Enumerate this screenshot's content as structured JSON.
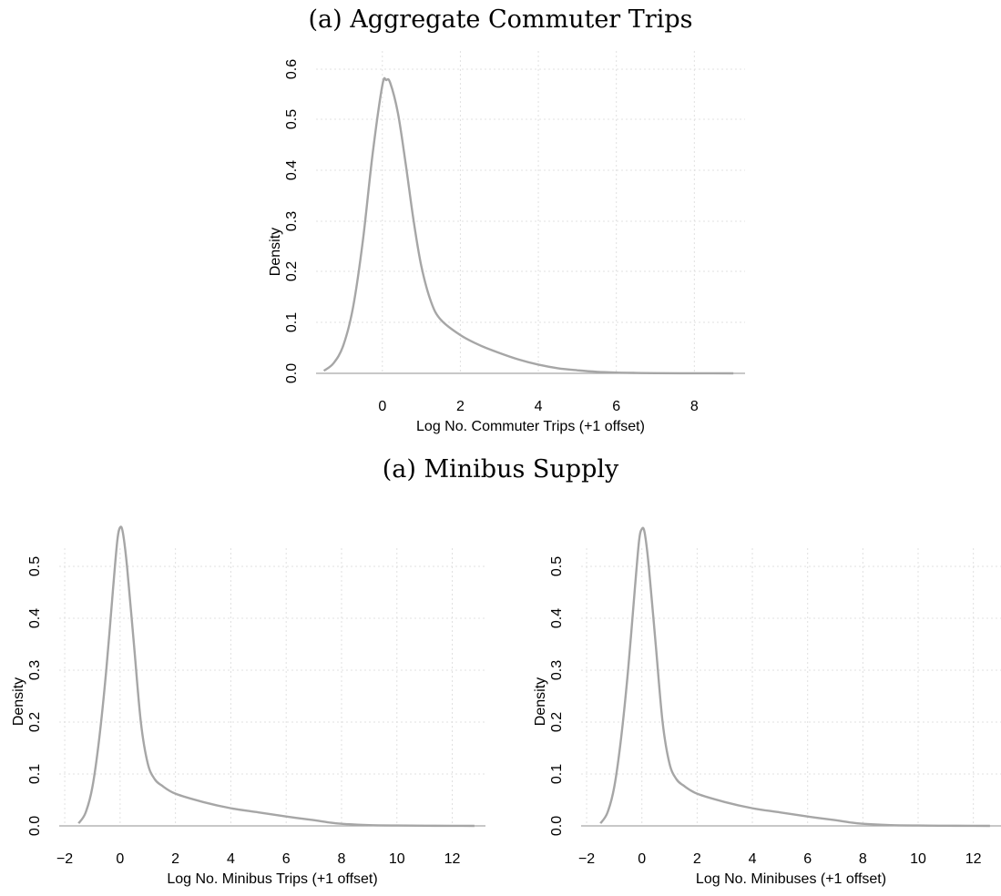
{
  "titles": {
    "top": "(a) Aggregate Commuter Trips",
    "bottom": "(a) Minibus Supply"
  },
  "colors": {
    "curve": "#a6a6a6",
    "grid": "#e0e0e0",
    "baseline": "#a6a6a6"
  },
  "chart_data": [
    {
      "type": "line",
      "title": "",
      "xlabel": "Log No. Commuter Trips (+1 offset)",
      "ylabel": "Density",
      "xlim": [
        -1.7,
        9.3
      ],
      "ylim": [
        0,
        0.6
      ],
      "xticks": [
        0,
        2,
        4,
        6,
        8
      ],
      "yticks": [
        0.0,
        0.1,
        0.2,
        0.3,
        0.4,
        0.5,
        0.6
      ],
      "ytick_labels": [
        "0.0",
        "0.1",
        "0.2",
        "0.3",
        "0.4",
        "0.5",
        "0.6"
      ],
      "grid": true,
      "x": [
        -1.5,
        -1.25,
        -1.0,
        -0.75,
        -0.5,
        -0.25,
        0.0,
        0.1,
        0.2,
        0.4,
        0.6,
        0.8,
        1.0,
        1.25,
        1.5,
        2.0,
        2.5,
        3.0,
        3.5,
        4.0,
        4.5,
        5.0,
        5.5,
        6.0,
        6.5,
        7.0,
        8.0,
        9.0
      ],
      "y": [
        0.005,
        0.02,
        0.055,
        0.13,
        0.26,
        0.43,
        0.565,
        0.575,
        0.57,
        0.51,
        0.41,
        0.3,
        0.21,
        0.14,
        0.105,
        0.075,
        0.055,
        0.04,
        0.027,
        0.017,
        0.01,
        0.006,
        0.003,
        0.0015,
        0.0008,
        0.0004,
        0.0001,
        0.0
      ]
    },
    {
      "type": "line",
      "title": "",
      "xlabel": "Log No. Minibus Trips (+1 offset)",
      "ylabel": "Density",
      "xlim": [
        -2.2,
        13.2
      ],
      "ylim": [
        0,
        0.6
      ],
      "xticks": [
        -2,
        0,
        2,
        4,
        6,
        8,
        10,
        12
      ],
      "xtick_labels": [
        "−2",
        "0",
        "2",
        "4",
        "6",
        "8",
        "10",
        "12"
      ],
      "yticks": [
        0.0,
        0.1,
        0.2,
        0.3,
        0.4,
        0.5
      ],
      "ytick_labels": [
        "0.0",
        "0.1",
        "0.2",
        "0.3",
        "0.4",
        "0.5"
      ],
      "grid": true,
      "x": [
        -1.5,
        -1.25,
        -1.0,
        -0.75,
        -0.5,
        -0.25,
        -0.1,
        0.0,
        0.1,
        0.25,
        0.5,
        0.75,
        1.0,
        1.25,
        1.5,
        2.0,
        3.0,
        4.0,
        5.0,
        6.0,
        7.0,
        7.5,
        8.0,
        9.0,
        10.0,
        11.0,
        12.0,
        12.8
      ],
      "y": [
        0.005,
        0.025,
        0.075,
        0.17,
        0.3,
        0.46,
        0.55,
        0.575,
        0.565,
        0.5,
        0.35,
        0.2,
        0.12,
        0.09,
        0.078,
        0.062,
        0.046,
        0.034,
        0.026,
        0.018,
        0.011,
        0.007,
        0.004,
        0.0015,
        0.0007,
        0.0003,
        0.0001,
        0.0
      ]
    },
    {
      "type": "line",
      "title": "",
      "xlabel": "Log No. Minibuses (+1 offset)",
      "ylabel": "Density",
      "xlim": [
        -2.2,
        13.0
      ],
      "ylim": [
        0,
        0.6
      ],
      "xticks": [
        -2,
        0,
        2,
        4,
        6,
        8,
        10,
        12
      ],
      "xtick_labels": [
        "−2",
        "0",
        "2",
        "4",
        "6",
        "8",
        "10",
        "12"
      ],
      "yticks": [
        0.0,
        0.1,
        0.2,
        0.3,
        0.4,
        0.5
      ],
      "ytick_labels": [
        "0.0",
        "0.1",
        "0.2",
        "0.3",
        "0.4",
        "0.5"
      ],
      "grid": true,
      "x": [
        -1.5,
        -1.25,
        -1.0,
        -0.75,
        -0.5,
        -0.25,
        -0.1,
        0.0,
        0.1,
        0.25,
        0.5,
        0.75,
        1.0,
        1.25,
        1.5,
        2.0,
        3.0,
        4.0,
        5.0,
        6.0,
        7.0,
        7.5,
        8.0,
        9.0,
        10.0,
        11.0,
        12.0,
        12.6
      ],
      "y": [
        0.005,
        0.025,
        0.075,
        0.17,
        0.3,
        0.46,
        0.55,
        0.572,
        0.565,
        0.5,
        0.35,
        0.2,
        0.12,
        0.09,
        0.078,
        0.062,
        0.046,
        0.034,
        0.026,
        0.018,
        0.011,
        0.007,
        0.004,
        0.0015,
        0.0007,
        0.0003,
        0.0001,
        0.0
      ]
    }
  ]
}
